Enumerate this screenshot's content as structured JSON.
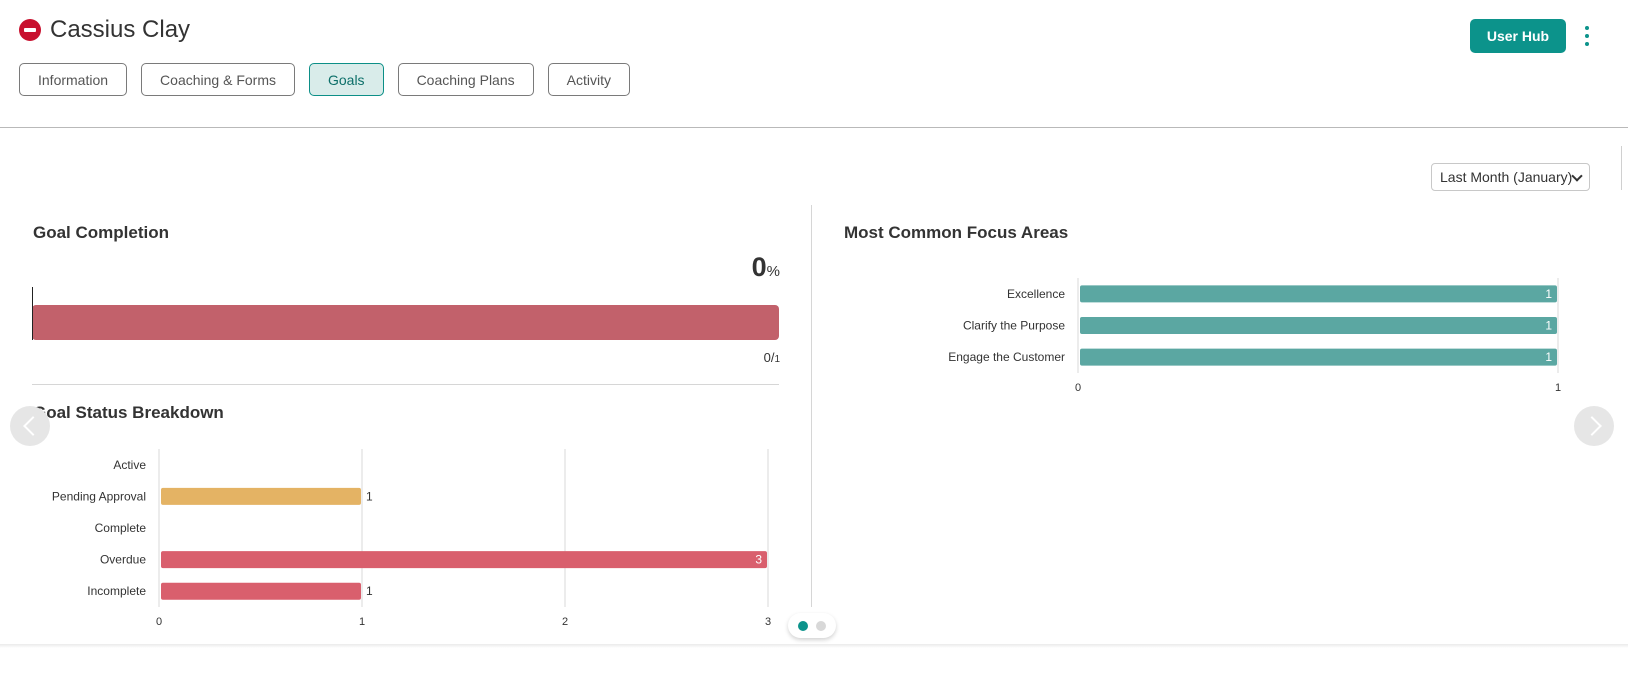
{
  "header": {
    "title": "Cassius Clay",
    "status_icon": "blocked-icon",
    "user_hub_label": "User Hub",
    "tabs": [
      {
        "label": "Information"
      },
      {
        "label": "Coaching & Forms"
      },
      {
        "label": "Goals"
      },
      {
        "label": "Coaching Plans"
      },
      {
        "label": "Activity"
      }
    ],
    "active_tab": "Goals"
  },
  "filters": {
    "period": "Last Month (January)"
  },
  "goal_completion": {
    "title": "Goal Completion",
    "percent": "0",
    "percent_unit": "%",
    "completed": "0",
    "total": "1",
    "bar_color": "#c2616b"
  },
  "goal_status": {
    "title": "Goal Status Breakdown"
  },
  "focus_areas": {
    "title": "Most Common Focus Areas"
  },
  "pager": {
    "pages": 2,
    "current": 1
  },
  "colors": {
    "accent": "#0c938b",
    "pending": "#e4b364",
    "danger": "#d95f6d",
    "focus": "#5ba7a2"
  },
  "chart_data": [
    {
      "type": "bar",
      "orientation": "horizontal",
      "title": "Goal Status Breakdown",
      "categories": [
        "Active",
        "Pending Approval",
        "Complete",
        "Overdue",
        "Incomplete"
      ],
      "values": [
        0,
        1,
        0,
        3,
        1
      ],
      "colors": [
        "#d95f6d",
        "#e4b364",
        "#d95f6d",
        "#d95f6d",
        "#d95f6d"
      ],
      "xlim": [
        0,
        3
      ],
      "xticks": [
        "0",
        "1",
        "2",
        "3"
      ],
      "grid": true
    },
    {
      "type": "bar",
      "orientation": "horizontal",
      "title": "Most Common Focus Areas",
      "categories": [
        "Excellence",
        "Clarify the Purpose",
        "Engage the Customer"
      ],
      "values": [
        1,
        1,
        1
      ],
      "colors": [
        "#5ba7a2",
        "#5ba7a2",
        "#5ba7a2"
      ],
      "xlim": [
        0,
        1
      ],
      "xticks": [
        "0",
        "1"
      ],
      "grid": false
    }
  ]
}
